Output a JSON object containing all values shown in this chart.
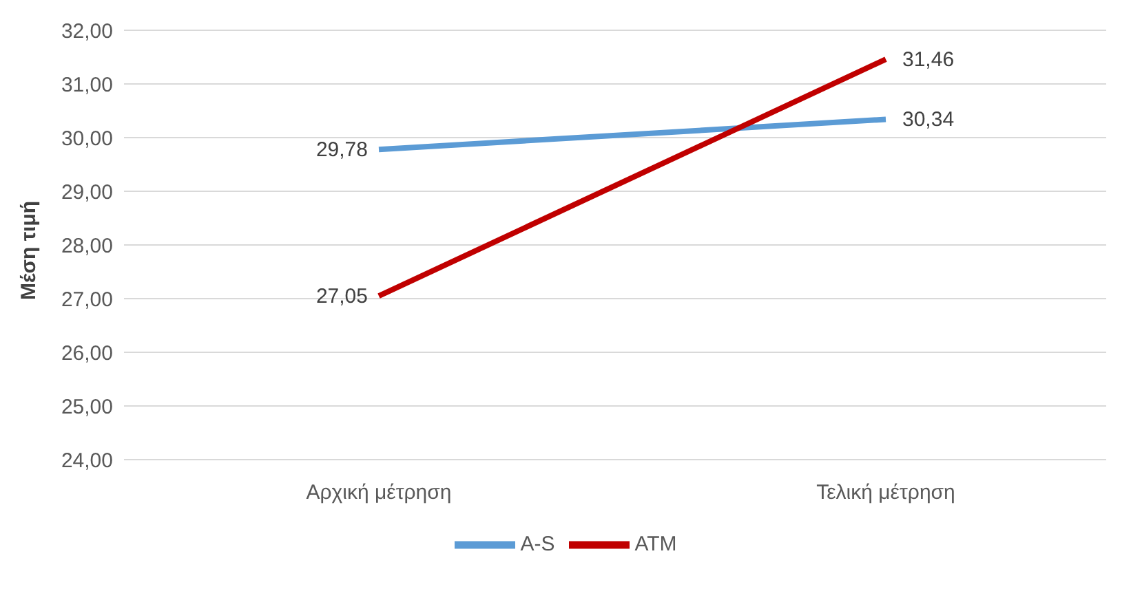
{
  "chart_data": {
    "type": "line",
    "ylabel": "Μέση τιμή",
    "categories": [
      "Αρχική μέτρηση",
      "Τελική μέτρηση"
    ],
    "series": [
      {
        "name": "A-S",
        "color": "#5b9bd5",
        "values": [
          29.78,
          30.34
        ],
        "value_labels": [
          "29,78",
          "30,34"
        ]
      },
      {
        "name": "ATM",
        "color": "#c00000",
        "values": [
          27.05,
          31.46
        ],
        "value_labels": [
          "27,05",
          "31,46"
        ]
      }
    ],
    "ylim": [
      24,
      32
    ],
    "yticks": [
      {
        "value": 24,
        "label": "24,00"
      },
      {
        "value": 25,
        "label": "25,00"
      },
      {
        "value": 26,
        "label": "26,00"
      },
      {
        "value": 27,
        "label": "27,00"
      },
      {
        "value": 28,
        "label": "28,00"
      },
      {
        "value": 29,
        "label": "29,00"
      },
      {
        "value": 30,
        "label": "30,00"
      },
      {
        "value": 31,
        "label": "31,00"
      },
      {
        "value": 32,
        "label": "32,00"
      }
    ],
    "grid": "y",
    "legend": "bottom",
    "marker": "none",
    "line_style": "solid"
  }
}
